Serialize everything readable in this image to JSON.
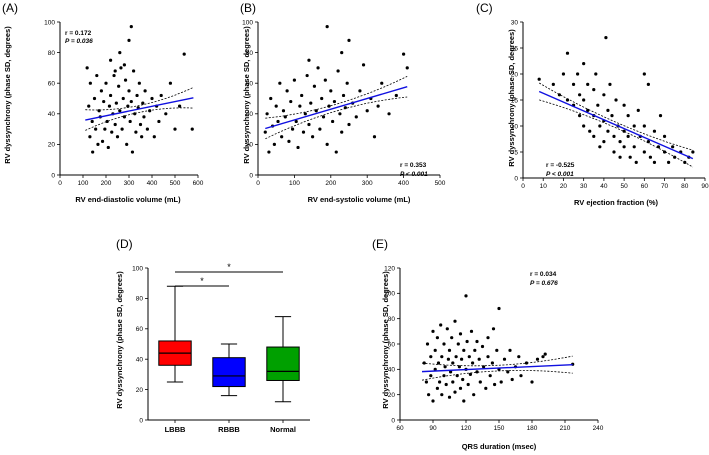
{
  "chart_data": [
    {
      "panel": "(A)",
      "type": "scatter",
      "xlabel": "RV end-diastolic volume (mL)",
      "ylabel": "RV dyssynchrony (phase SD, degrees)",
      "xlim": [
        0,
        600
      ],
      "ylim": [
        0,
        100
      ],
      "xticks": [
        0,
        100,
        200,
        300,
        400,
        500,
        600
      ],
      "yticks": [
        0,
        20,
        40,
        60,
        80,
        100
      ],
      "stat_r": "r = 0.172",
      "stat_p": "P = 0.036",
      "stat_pos": "top-left",
      "fit": {
        "slope": 0.031,
        "intercept": 32.5,
        "x_range": [
          110,
          580
        ]
      },
      "ci_width": 5.0,
      "points": [
        [
          118,
          70
        ],
        [
          125,
          45
        ],
        [
          130,
          25
        ],
        [
          132,
          60
        ],
        [
          140,
          35
        ],
        [
          142,
          15
        ],
        [
          150,
          50
        ],
        [
          155,
          30
        ],
        [
          160,
          65
        ],
        [
          165,
          20
        ],
        [
          170,
          42
        ],
        [
          175,
          38
        ],
        [
          180,
          55
        ],
        [
          185,
          22
        ],
        [
          190,
          48
        ],
        [
          195,
          30
        ],
        [
          200,
          60
        ],
        [
          205,
          35
        ],
        [
          210,
          18
        ],
        [
          215,
          45
        ],
        [
          220,
          52
        ],
        [
          225,
          28
        ],
        [
          230,
          40
        ],
        [
          235,
          65
        ],
        [
          240,
          33
        ],
        [
          245,
          47
        ],
        [
          250,
          25
        ],
        [
          255,
          58
        ],
        [
          260,
          42
        ],
        [
          265,
          70
        ],
        [
          270,
          30
        ],
        [
          275,
          50
        ],
        [
          280,
          38
        ],
        [
          285,
          62
        ],
        [
          290,
          20
        ],
        [
          295,
          45
        ],
        [
          300,
          55
        ],
        [
          305,
          35
        ],
        [
          310,
          48
        ],
        [
          315,
          15
        ],
        [
          320,
          68
        ],
        [
          325,
          40
        ],
        [
          330,
          28
        ],
        [
          335,
          52
        ],
        [
          340,
          44
        ],
        [
          345,
          60
        ],
        [
          350,
          33
        ],
        [
          355,
          25
        ],
        [
          360,
          47
        ],
        [
          365,
          38
        ],
        [
          370,
          55
        ],
        [
          380,
          30
        ],
        [
          390,
          42
        ],
        [
          400,
          50
        ],
        [
          410,
          25
        ],
        [
          420,
          45
        ],
        [
          430,
          35
        ],
        [
          440,
          52
        ],
        [
          460,
          40
        ],
        [
          480,
          60
        ],
        [
          500,
          30
        ],
        [
          520,
          45
        ],
        [
          540,
          79
        ],
        [
          575,
          30
        ],
        [
          310,
          97
        ],
        [
          300,
          88
        ],
        [
          280,
          72
        ],
        [
          260,
          80
        ],
        [
          240,
          68
        ],
        [
          220,
          75
        ]
      ]
    },
    {
      "panel": "(B)",
      "type": "scatter",
      "xlabel": "RV end-systolic volume (mL)",
      "ylabel": "RV dyssynchrony (phase SD, degrees)",
      "xlim": [
        0,
        500
      ],
      "ylim": [
        0,
        100
      ],
      "xticks": [
        0,
        100,
        200,
        300,
        400,
        500
      ],
      "yticks": [
        0,
        20,
        40,
        60,
        80,
        100
      ],
      "stat_r": "r = 0.353",
      "stat_p": "P < 0.001",
      "stat_pos": "bottom-right",
      "fit": {
        "slope": 0.07,
        "intercept": 29.0,
        "x_range": [
          20,
          410
        ]
      },
      "ci_width": 5.0,
      "points": [
        [
          20,
          28
        ],
        [
          25,
          40
        ],
        [
          30,
          15
        ],
        [
          35,
          50
        ],
        [
          40,
          32
        ],
        [
          45,
          20
        ],
        [
          50,
          45
        ],
        [
          55,
          35
        ],
        [
          60,
          60
        ],
        [
          65,
          25
        ],
        [
          70,
          42
        ],
        [
          75,
          38
        ],
        [
          80,
          55
        ],
        [
          85,
          22
        ],
        [
          90,
          48
        ],
        [
          95,
          30
        ],
        [
          100,
          62
        ],
        [
          105,
          35
        ],
        [
          110,
          18
        ],
        [
          115,
          45
        ],
        [
          120,
          52
        ],
        [
          125,
          28
        ],
        [
          130,
          40
        ],
        [
          135,
          65
        ],
        [
          140,
          33
        ],
        [
          145,
          47
        ],
        [
          150,
          25
        ],
        [
          155,
          58
        ],
        [
          160,
          42
        ],
        [
          165,
          70
        ],
        [
          170,
          30
        ],
        [
          175,
          50
        ],
        [
          180,
          38
        ],
        [
          185,
          62
        ],
        [
          190,
          20
        ],
        [
          195,
          45
        ],
        [
          200,
          55
        ],
        [
          205,
          35
        ],
        [
          210,
          48
        ],
        [
          215,
          15
        ],
        [
          220,
          68
        ],
        [
          225,
          40
        ],
        [
          230,
          28
        ],
        [
          235,
          52
        ],
        [
          240,
          44
        ],
        [
          245,
          60
        ],
        [
          250,
          33
        ],
        [
          260,
          47
        ],
        [
          270,
          38
        ],
        [
          280,
          55
        ],
        [
          290,
          72
        ],
        [
          300,
          42
        ],
        [
          310,
          50
        ],
        [
          320,
          25
        ],
        [
          330,
          45
        ],
        [
          340,
          60
        ],
        [
          360,
          40
        ],
        [
          380,
          52
        ],
        [
          400,
          79
        ],
        [
          410,
          70
        ],
        [
          190,
          97
        ],
        [
          250,
          88
        ],
        [
          230,
          80
        ],
        [
          140,
          75
        ]
      ]
    },
    {
      "panel": "(C)",
      "type": "scatter",
      "xlabel": "RV ejection fraction (%)",
      "ylabel": "RV dyssynchrony (phase SD, degrees)",
      "xlim": [
        0,
        90
      ],
      "ylim": [
        0,
        30
      ],
      "xticks": [
        0,
        10,
        20,
        30,
        40,
        50,
        60,
        70,
        80,
        90
      ],
      "yticks": [
        0,
        5,
        10,
        15,
        20,
        25,
        30
      ],
      "stat_r": "r = -0.525",
      "stat_p": "P < 0.001",
      "stat_pos": "bottom-left",
      "fit": {
        "slope": -0.17,
        "intercept": 18.0,
        "x_range": [
          8,
          84
        ]
      },
      "ci_width": 1.2,
      "points": [
        [
          8,
          19
        ],
        [
          15,
          18
        ],
        [
          18,
          16
        ],
        [
          20,
          20
        ],
        [
          22,
          24
        ],
        [
          22,
          15
        ],
        [
          25,
          18
        ],
        [
          25,
          14
        ],
        [
          27,
          20
        ],
        [
          28,
          16
        ],
        [
          28,
          12
        ],
        [
          30,
          22
        ],
        [
          30,
          15
        ],
        [
          30,
          10
        ],
        [
          32,
          18
        ],
        [
          32,
          13
        ],
        [
          33,
          9
        ],
        [
          35,
          17
        ],
        [
          35,
          12
        ],
        [
          35,
          8
        ],
        [
          36,
          20
        ],
        [
          37,
          14
        ],
        [
          38,
          10
        ],
        [
          38,
          6
        ],
        [
          40,
          16
        ],
        [
          40,
          11
        ],
        [
          40,
          7
        ],
        [
          41,
          27
        ],
        [
          42,
          13
        ],
        [
          42,
          9
        ],
        [
          43,
          18
        ],
        [
          44,
          12
        ],
        [
          45,
          8
        ],
        [
          45,
          5
        ],
        [
          46,
          15
        ],
        [
          47,
          10
        ],
        [
          48,
          7
        ],
        [
          48,
          4
        ],
        [
          50,
          14
        ],
        [
          50,
          9
        ],
        [
          50,
          6
        ],
        [
          52,
          12
        ],
        [
          52,
          8
        ],
        [
          53,
          4
        ],
        [
          55,
          10
        ],
        [
          55,
          6
        ],
        [
          56,
          3
        ],
        [
          57,
          13
        ],
        [
          58,
          8
        ],
        [
          60,
          10
        ],
        [
          60,
          5
        ],
        [
          60,
          20
        ],
        [
          62,
          7
        ],
        [
          62,
          18
        ],
        [
          63,
          4
        ],
        [
          65,
          9
        ],
        [
          65,
          3
        ],
        [
          67,
          6
        ],
        [
          68,
          12
        ],
        [
          70,
          5
        ],
        [
          70,
          8
        ],
        [
          72,
          3
        ],
        [
          74,
          6
        ],
        [
          75,
          4
        ],
        [
          78,
          5
        ],
        [
          80,
          3
        ],
        [
          82,
          4
        ],
        [
          84,
          5
        ]
      ]
    },
    {
      "panel": "(D)",
      "type": "box",
      "ylabel": "RV dyssynchrony (phase SD, degrees)",
      "ylim": [
        0,
        100
      ],
      "yticks": [
        0,
        20,
        40,
        60,
        80,
        100
      ],
      "categories": [
        "LBBB",
        "RBBB",
        "Normal"
      ],
      "boxes": [
        {
          "name": "LBBB",
          "min": 25,
          "q1": 36,
          "median": 44,
          "q3": 52,
          "max": 88,
          "color": "#ff0000"
        },
        {
          "name": "RBBB",
          "min": 16,
          "q1": 22,
          "median": 29,
          "q3": 41,
          "max": 50,
          "color": "#0000ff"
        },
        {
          "name": "Normal",
          "min": 12,
          "q1": 26,
          "median": 32,
          "q3": 48,
          "max": 68,
          "color": "#00a000"
        }
      ],
      "significance": [
        {
          "from": "LBBB",
          "to": "RBBB",
          "label": "*"
        },
        {
          "from": "LBBB",
          "to": "Normal",
          "label": "*"
        }
      ]
    },
    {
      "panel": "(E)",
      "type": "scatter",
      "xlabel": "QRS duration (msec)",
      "ylabel": "RV dyssynchrony (phase SD, degrees)",
      "xlim": [
        60,
        240
      ],
      "ylim": [
        0,
        120
      ],
      "xticks": [
        60,
        90,
        120,
        150,
        180,
        210,
        240
      ],
      "yticks": [
        0,
        20,
        40,
        60,
        80,
        100,
        120
      ],
      "stat_r": "r = 0.034",
      "stat_p": "P = 0.676",
      "stat_pos": "top-right",
      "fit": {
        "slope": 0.04,
        "intercept": 35.0,
        "x_range": [
          80,
          217
        ]
      },
      "ci_width": 5.0,
      "points": [
        [
          82,
          45
        ],
        [
          84,
          30
        ],
        [
          85,
          60
        ],
        [
          86,
          20
        ],
        [
          88,
          50
        ],
        [
          88,
          35
        ],
        [
          90,
          70
        ],
        [
          90,
          15
        ],
        [
          92,
          40
        ],
        [
          92,
          55
        ],
        [
          94,
          25
        ],
        [
          94,
          65
        ],
        [
          95,
          45
        ],
        [
          96,
          30
        ],
        [
          97,
          75
        ],
        [
          98,
          50
        ],
        [
          98,
          20
        ],
        [
          100,
          60
        ],
        [
          100,
          35
        ],
        [
          101,
          42
        ],
        [
          102,
          28
        ],
        [
          103,
          72
        ],
        [
          104,
          48
        ],
        [
          105,
          18
        ],
        [
          105,
          55
        ],
        [
          106,
          38
        ],
        [
          107,
          65
        ],
        [
          108,
          30
        ],
        [
          108,
          45
        ],
        [
          110,
          78
        ],
        [
          110,
          22
        ],
        [
          111,
          50
        ],
        [
          112,
          35
        ],
        [
          113,
          60
        ],
        [
          114,
          42
        ],
        [
          115,
          25
        ],
        [
          115,
          68
        ],
        [
          116,
          48
        ],
        [
          117,
          32
        ],
        [
          118,
          55
        ],
        [
          118,
          15
        ],
        [
          120,
          98
        ],
        [
          120,
          40
        ],
        [
          121,
          62
        ],
        [
          122,
          28
        ],
        [
          123,
          50
        ],
        [
          124,
          36
        ],
        [
          125,
          70
        ],
        [
          126,
          45
        ],
        [
          127,
          20
        ],
        [
          128,
          55
        ],
        [
          130,
          38
        ],
        [
          130,
          62
        ],
        [
          132,
          48
        ],
        [
          133,
          30
        ],
        [
          135,
          58
        ],
        [
          136,
          42
        ],
        [
          138,
          25
        ],
        [
          140,
          50
        ],
        [
          140,
          65
        ],
        [
          142,
          35
        ],
        [
          144,
          45
        ],
        [
          145,
          72
        ],
        [
          146,
          28
        ],
        [
          148,
          55
        ],
        [
          150,
          40
        ],
        [
          150,
          88
        ],
        [
          152,
          30
        ],
        [
          155,
          48
        ],
        [
          158,
          38
        ],
        [
          160,
          55
        ],
        [
          162,
          32
        ],
        [
          165,
          42
        ],
        [
          168,
          50
        ],
        [
          170,
          35
        ],
        [
          175,
          45
        ],
        [
          180,
          30
        ],
        [
          185,
          48
        ],
        [
          190,
          50
        ],
        [
          192,
          52
        ],
        [
          217,
          44
        ]
      ]
    }
  ]
}
